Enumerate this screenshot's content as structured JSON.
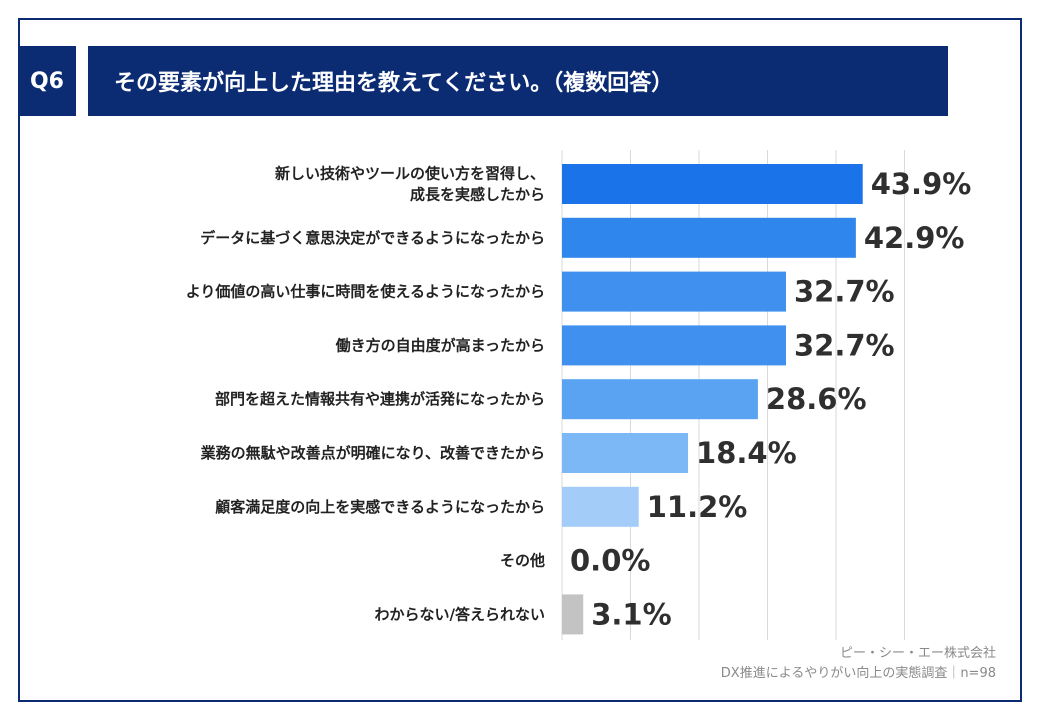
{
  "header": {
    "question_id": "Q6",
    "title": "その要素が向上した理由を教えてください。（複数回答）"
  },
  "chart_data": {
    "type": "bar",
    "orientation": "horizontal",
    "unit": "%",
    "xlim": [
      0,
      50
    ],
    "categories": [
      [
        "新しい技術やツールの使い方を習得し、",
        "成長を実感したから"
      ],
      [
        "データに基づく意思決定ができるようになったから"
      ],
      [
        "より価値の高い仕事に時間を使えるようになったから"
      ],
      [
        "働き方の自由度が高まったから"
      ],
      [
        "部門を超えた情報共有や連携が活発になったから"
      ],
      [
        "業務の無駄や改善点が明確になり、改善できたから"
      ],
      [
        "顧客満足度の向上を実感できるようになったから"
      ],
      [
        "その他"
      ],
      [
        "わからない/答えられない"
      ]
    ],
    "values": [
      43.9,
      42.9,
      32.7,
      32.7,
      28.6,
      18.4,
      11.2,
      0.0,
      3.1
    ],
    "value_labels": [
      "43.9%",
      "42.9%",
      "32.7%",
      "32.7%",
      "28.6%",
      "18.4%",
      "11.2%",
      "0.0%",
      "3.1%"
    ],
    "colors": [
      "#1a73e8",
      "#2f86ec",
      "#3f90ef",
      "#3f90ef",
      "#5aa3f2",
      "#7cb8f6",
      "#a3cdf8",
      "#a3cdf8",
      "#c3c3c3"
    ]
  },
  "footer": {
    "company": "ピー・シー・エー株式会社",
    "survey": "DX推進によるやりがい向上の実態調査｜n=98"
  }
}
